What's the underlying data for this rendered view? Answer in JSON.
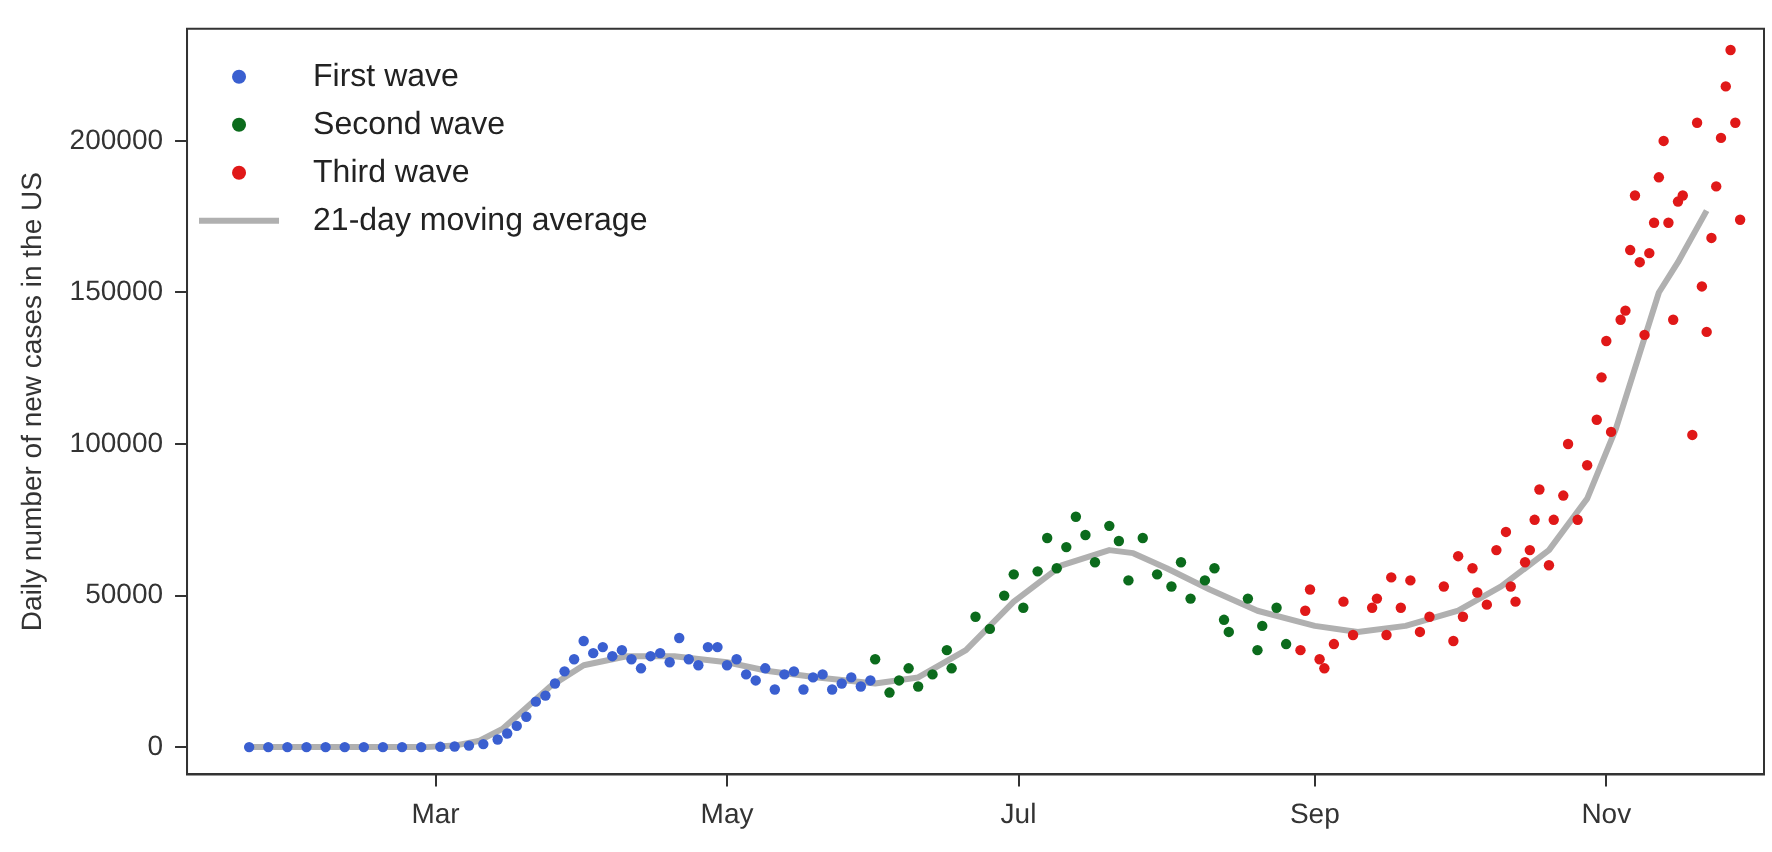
{
  "chart_data": {
    "type": "scatter",
    "ylabel": "Daily number of new cases in the US",
    "marker": "circle",
    "legend": "top left",
    "grid": false,
    "xlim": [
      "--01-09",
      "--12-04"
    ],
    "xticks": [
      {
        "value": "--03-01",
        "label": "Mar"
      },
      {
        "value": "--05-01",
        "label": "May"
      },
      {
        "value": "--07-01",
        "label": "Jul"
      },
      {
        "value": "--09-01",
        "label": "Sep"
      },
      {
        "value": "--11-01",
        "label": "Nov"
      }
    ],
    "ylim": [
      -9000,
      237000
    ],
    "yticks": [
      0,
      50000,
      100000,
      150000,
      200000
    ],
    "series": [
      {
        "name": "First wave",
        "color": "#3a5fd0",
        "x": [
          "--01-22",
          "--01-26",
          "--01-30",
          "--02-03",
          "--02-07",
          "--02-11",
          "--02-15",
          "--02-19",
          "--02-23",
          "--02-27",
          "--03-02",
          "--03-05",
          "--03-08",
          "--03-11",
          "--03-14",
          "--03-16",
          "--03-18",
          "--03-20",
          "--03-22",
          "--03-24",
          "--03-26",
          "--03-28",
          "--03-30",
          "--04-01",
          "--04-03",
          "--04-05",
          "--04-07",
          "--04-09",
          "--04-11",
          "--04-13",
          "--04-15",
          "--04-17",
          "--04-19",
          "--04-21",
          "--04-23",
          "--04-25",
          "--04-27",
          "--04-29",
          "--05-01",
          "--05-03",
          "--05-05",
          "--05-07",
          "--05-09",
          "--05-11",
          "--05-13",
          "--05-15",
          "--05-17",
          "--05-19",
          "--05-21",
          "--05-23",
          "--05-25",
          "--05-27",
          "--05-29",
          "--05-31"
        ],
        "values": [
          0,
          0,
          0,
          0,
          0,
          0,
          0,
          0,
          0,
          0,
          100,
          200,
          500,
          1000,
          2500,
          4500,
          7000,
          10000,
          15000,
          17000,
          21000,
          25000,
          29000,
          35000,
          31000,
          33000,
          30000,
          32000,
          29000,
          26000,
          30000,
          31000,
          28000,
          36000,
          29000,
          27000,
          33000,
          33000,
          27000,
          29000,
          24000,
          22000,
          26000,
          19000,
          24000,
          25000,
          19000,
          23000,
          24000,
          19000,
          21000,
          23000,
          20000,
          22000
        ]
      },
      {
        "name": "Second wave",
        "color": "#0b6b1c",
        "x": [
          "--06-01",
          "--06-04",
          "--06-06",
          "--06-08",
          "--06-10",
          "--06-13",
          "--06-16",
          "--06-17",
          "--06-22",
          "--06-25",
          "--06-28",
          "--06-30",
          "--07-02",
          "--07-05",
          "--07-07",
          "--07-09",
          "--07-11",
          "--07-13",
          "--07-15",
          "--07-17",
          "--07-20",
          "--07-22",
          "--07-24",
          "--07-27",
          "--07-30",
          "--08-02",
          "--08-04",
          "--08-06",
          "--08-09",
          "--08-11",
          "--08-13",
          "--08-14",
          "--08-18",
          "--08-20",
          "--08-21",
          "--08-24",
          "--08-26"
        ],
        "values": [
          29000,
          18000,
          22000,
          26000,
          20000,
          24000,
          32000,
          26000,
          43000,
          39000,
          50000,
          57000,
          46000,
          58000,
          69000,
          59000,
          66000,
          76000,
          70000,
          61000,
          73000,
          68000,
          55000,
          69000,
          57000,
          53000,
          61000,
          49000,
          55000,
          59000,
          42000,
          38000,
          49000,
          32000,
          40000,
          46000,
          34000
        ]
      },
      {
        "name": "Third wave",
        "color": "#e01818",
        "x": [
          "--08-29",
          "--08-31",
          "--08-30",
          "--09-02",
          "--09-03",
          "--09-05",
          "--09-07",
          "--09-09",
          "--09-13",
          "--09-14",
          "--09-16",
          "--09-17",
          "--09-19",
          "--09-21",
          "--09-23",
          "--09-25",
          "--09-28",
          "--09-30",
          "--10-01",
          "--10-02",
          "--10-04",
          "--10-05",
          "--10-07",
          "--10-09",
          "--10-11",
          "--10-12",
          "--10-13",
          "--10-15",
          "--10-16",
          "--10-17",
          "--10-18",
          "--10-20",
          "--10-21",
          "--10-23",
          "--10-24",
          "--10-26",
          "--10-28",
          "--10-30",
          "--10-31",
          "--11-01",
          "--11-02",
          "--11-04",
          "--11-05",
          "--11-06",
          "--11-07",
          "--11-08",
          "--11-09",
          "--11-10",
          "--11-11",
          "--11-12",
          "--11-13",
          "--11-14",
          "--11-15",
          "--11-16",
          "--11-17",
          "--11-19",
          "--11-20",
          "--11-21",
          "--11-22",
          "--11-23",
          "--11-24",
          "--11-25",
          "--11-26",
          "--11-27",
          "--11-28",
          "--11-29"
        ],
        "values": [
          32000,
          52000,
          45000,
          29000,
          26000,
          34000,
          48000,
          37000,
          46000,
          49000,
          37000,
          56000,
          46000,
          55000,
          38000,
          43000,
          53000,
          35000,
          63000,
          43000,
          59000,
          51000,
          47000,
          65000,
          71000,
          53000,
          48000,
          61000,
          65000,
          75000,
          85000,
          60000,
          75000,
          83000,
          100000,
          75000,
          93000,
          108000,
          122000,
          134000,
          104000,
          141000,
          144000,
          164000,
          182000,
          160000,
          136000,
          163000,
          173000,
          188000,
          200000,
          173000,
          141000,
          180000,
          182000,
          103000,
          206000,
          152000,
          137000,
          168000,
          185000,
          201000,
          218000,
          230000,
          206000,
          174000
        ]
      },
      {
        "name": "21-day moving average",
        "type": "line",
        "color": "#b0b0b0",
        "marker": "none",
        "line_style": "solid",
        "x": [
          "--01-22",
          "--02-28",
          "--03-05",
          "--03-10",
          "--03-15",
          "--03-20",
          "--03-25",
          "--04-01",
          "--04-10",
          "--04-20",
          "--05-01",
          "--05-10",
          "--05-20",
          "--06-01",
          "--06-10",
          "--06-20",
          "--06-30",
          "--07-10",
          "--07-20",
          "--07-25",
          "--08-01",
          "--08-10",
          "--08-20",
          "--09-01",
          "--09-10",
          "--09-20",
          "--10-01",
          "--10-10",
          "--10-20",
          "--10-28",
          "--11-03",
          "--11-08",
          "--11-12",
          "--11-16",
          "--11-22"
        ],
        "values": [
          0,
          0,
          500,
          2000,
          6000,
          13000,
          20000,
          27000,
          30000,
          30000,
          28000,
          25000,
          23000,
          21000,
          23000,
          32000,
          48000,
          60000,
          65000,
          64000,
          59000,
          52000,
          45000,
          40000,
          38000,
          40000,
          45000,
          53000,
          65000,
          82000,
          105000,
          130000,
          150000,
          160000,
          177000
        ]
      }
    ]
  }
}
